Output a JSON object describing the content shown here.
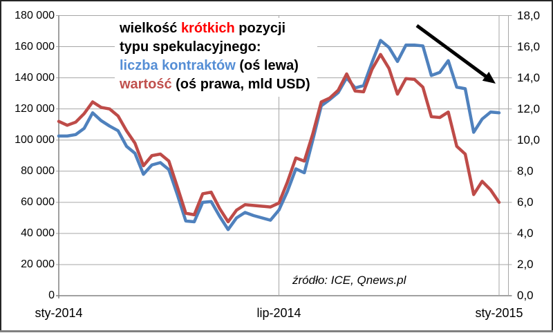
{
  "colors": {
    "series_contracts": "#4F81BD",
    "series_value": "#BE4B48",
    "annotation_blue": "#558ED5",
    "annotation_dark_red": "#C0504D",
    "highlight_red": "#FF0000",
    "grid": "#A6A6A6",
    "axis": "#808080",
    "arrow": "#000000"
  },
  "annotation": {
    "line1": [
      {
        "text": "wielkość "
      },
      {
        "text": "krótkich"
      },
      {
        "text": " pozycji"
      }
    ],
    "line2": [
      {
        "text": "typu spekulacyjnego:"
      }
    ],
    "line3": [
      {
        "text": "liczba kontraktów"
      },
      {
        "text": " (oś lewa)"
      }
    ],
    "line4": [
      {
        "text": "wartość"
      },
      {
        "text": " (oś prawa, mld USD)"
      }
    ]
  },
  "source_note": "źródło: ICE, Qnews.pl",
  "chart_data": {
    "type": "line",
    "x_unit": "week",
    "x_tick_labels": [
      {
        "label": "sty-2014",
        "index": 0
      },
      {
        "label": "lip-2014",
        "index": 26
      },
      {
        "label": "sty-2015",
        "index": 52
      }
    ],
    "left_axis": {
      "min": 0,
      "max": 180000,
      "step": 20000,
      "tick_labels": [
        "180 000",
        "160 000",
        "140 000",
        "120 000",
        "100 000",
        "80 000",
        "60 000",
        "40 000",
        "20 000",
        "0"
      ]
    },
    "right_axis": {
      "min": 0,
      "max": 18,
      "step": 2,
      "tick_labels": [
        "18,0",
        "16,0",
        "14,0",
        "12,0",
        "10,0",
        "8,0",
        "6,0",
        "4,0",
        "2,0",
        "0,0"
      ]
    },
    "grid": true,
    "series": [
      {
        "name": "liczba kontraktów",
        "axis": "left",
        "color": "#4F81BD",
        "values": [
          102600,
          102600,
          103500,
          107500,
          117500,
          112500,
          109000,
          106000,
          96000,
          91500,
          78000,
          84000,
          85500,
          81000,
          65000,
          48000,
          47500,
          60000,
          60500,
          51000,
          42500,
          50000,
          53500,
          51500,
          50000,
          48500,
          55000,
          67000,
          81500,
          79000,
          100000,
          122000,
          126000,
          130500,
          140000,
          133500,
          135000,
          150000,
          164000,
          159500,
          150500,
          161000,
          161000,
          160500,
          141500,
          143500,
          151000,
          134000,
          133000,
          105000,
          113500,
          118000,
          117500
        ]
      },
      {
        "name": "wartość",
        "unit": "mld USD",
        "axis": "right",
        "color": "#BE4B48",
        "values": [
          11.2,
          10.95,
          11.15,
          11.7,
          12.45,
          12.1,
          12.0,
          11.55,
          10.6,
          9.8,
          8.35,
          9.0,
          9.1,
          8.65,
          7.0,
          5.3,
          5.2,
          6.55,
          6.65,
          5.6,
          4.75,
          5.5,
          5.85,
          5.8,
          5.75,
          5.7,
          5.95,
          7.3,
          8.85,
          8.65,
          10.4,
          12.45,
          12.7,
          13.2,
          14.25,
          13.15,
          13.1,
          14.55,
          15.5,
          14.6,
          12.95,
          13.95,
          13.9,
          13.4,
          11.5,
          11.45,
          11.8,
          9.6,
          9.1,
          6.5,
          7.35,
          6.8,
          6.0
        ]
      }
    ],
    "arrow_annotation": {
      "direction": "down-right",
      "from": {
        "x": 603,
        "y": 37
      },
      "to": {
        "x": 717,
        "y": 121
      }
    }
  }
}
